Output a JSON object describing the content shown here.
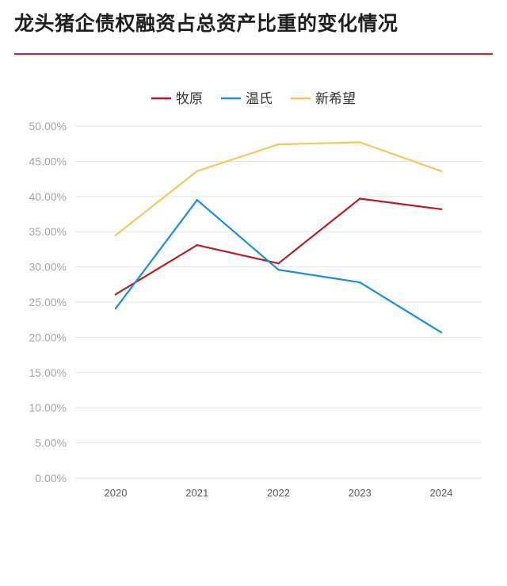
{
  "header": {
    "title": "龙头猪企债权融资占总资产比重的变化情况",
    "accent_color": "#c8262c"
  },
  "chart_data": {
    "type": "line",
    "title": "龙头猪企债权融资占总资产比重的变化情况",
    "xlabel": "",
    "ylabel": "",
    "x": [
      "2020",
      "2021",
      "2022",
      "2023",
      "2024"
    ],
    "ylim": [
      0,
      50
    ],
    "yticks": [
      0,
      5,
      10,
      15,
      20,
      25,
      30,
      35,
      40,
      45,
      50
    ],
    "ytick_labels": [
      "0.00%",
      "5.00%",
      "10.00%",
      "15.00%",
      "20.00%",
      "25.00%",
      "30.00%",
      "35.00%",
      "40.00%",
      "45.00%",
      "50.00%"
    ],
    "grid": true,
    "legend_position": "top-center",
    "series": [
      {
        "name": "牧原",
        "color": "#b51f22",
        "values": [
          26.1,
          33.1,
          30.5,
          39.7,
          38.2
        ]
      },
      {
        "name": "温氏",
        "color": "#1a8fd1",
        "values": [
          24.1,
          39.5,
          29.6,
          27.8,
          20.7
        ]
      },
      {
        "name": "新希望",
        "color": "#f2c860",
        "values": [
          34.5,
          43.6,
          47.4,
          47.7,
          43.6
        ]
      }
    ]
  }
}
